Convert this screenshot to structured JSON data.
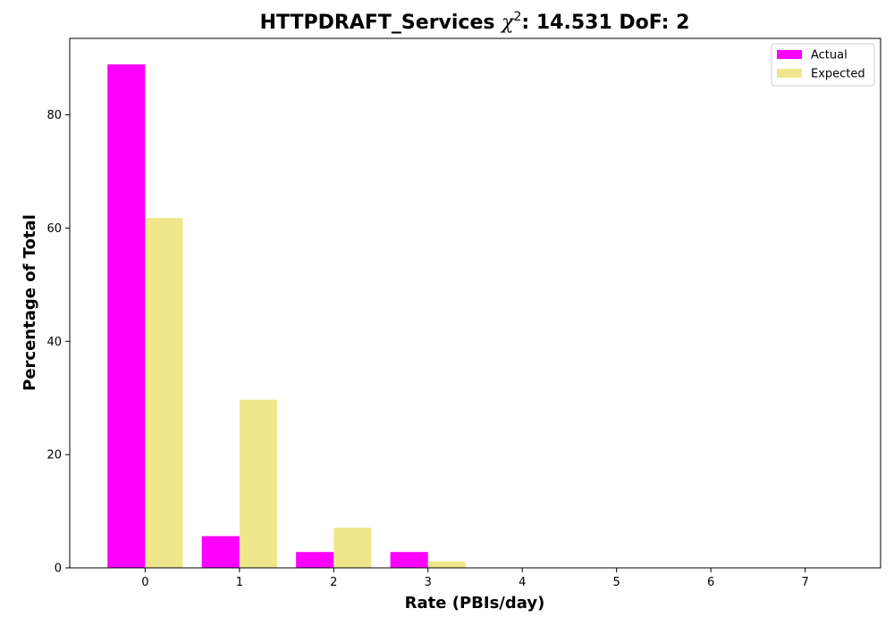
{
  "chart_data": {
    "type": "bar",
    "title_prefix": "HTTPDRAFT_Services ",
    "title_chi": "χ",
    "title_sup": "2",
    "title_suffix": ": 14.531 DoF: 2",
    "xlabel": "Rate (PBIs/day)",
    "ylabel": "Percentage of Total",
    "categories": [
      "0",
      "1",
      "2",
      "3",
      "4",
      "5",
      "6",
      "7"
    ],
    "x": [
      0,
      1,
      2,
      3,
      4,
      5,
      6,
      7
    ],
    "xlim": [
      -0.8,
      7.8
    ],
    "ylim": [
      0,
      93.5
    ],
    "yticks": [
      0,
      20,
      40,
      60,
      80
    ],
    "series": [
      {
        "name": "Actual",
        "color": "#ff00ff",
        "values": [
          88.9,
          5.6,
          2.8,
          2.8,
          0,
          0,
          0,
          0
        ]
      },
      {
        "name": "Expected",
        "color": "#f0e68c",
        "values": [
          61.8,
          29.7,
          7.1,
          1.1,
          0.1,
          0.0,
          0.0,
          0.0
        ]
      }
    ],
    "legend": "top-right",
    "grid": false
  }
}
